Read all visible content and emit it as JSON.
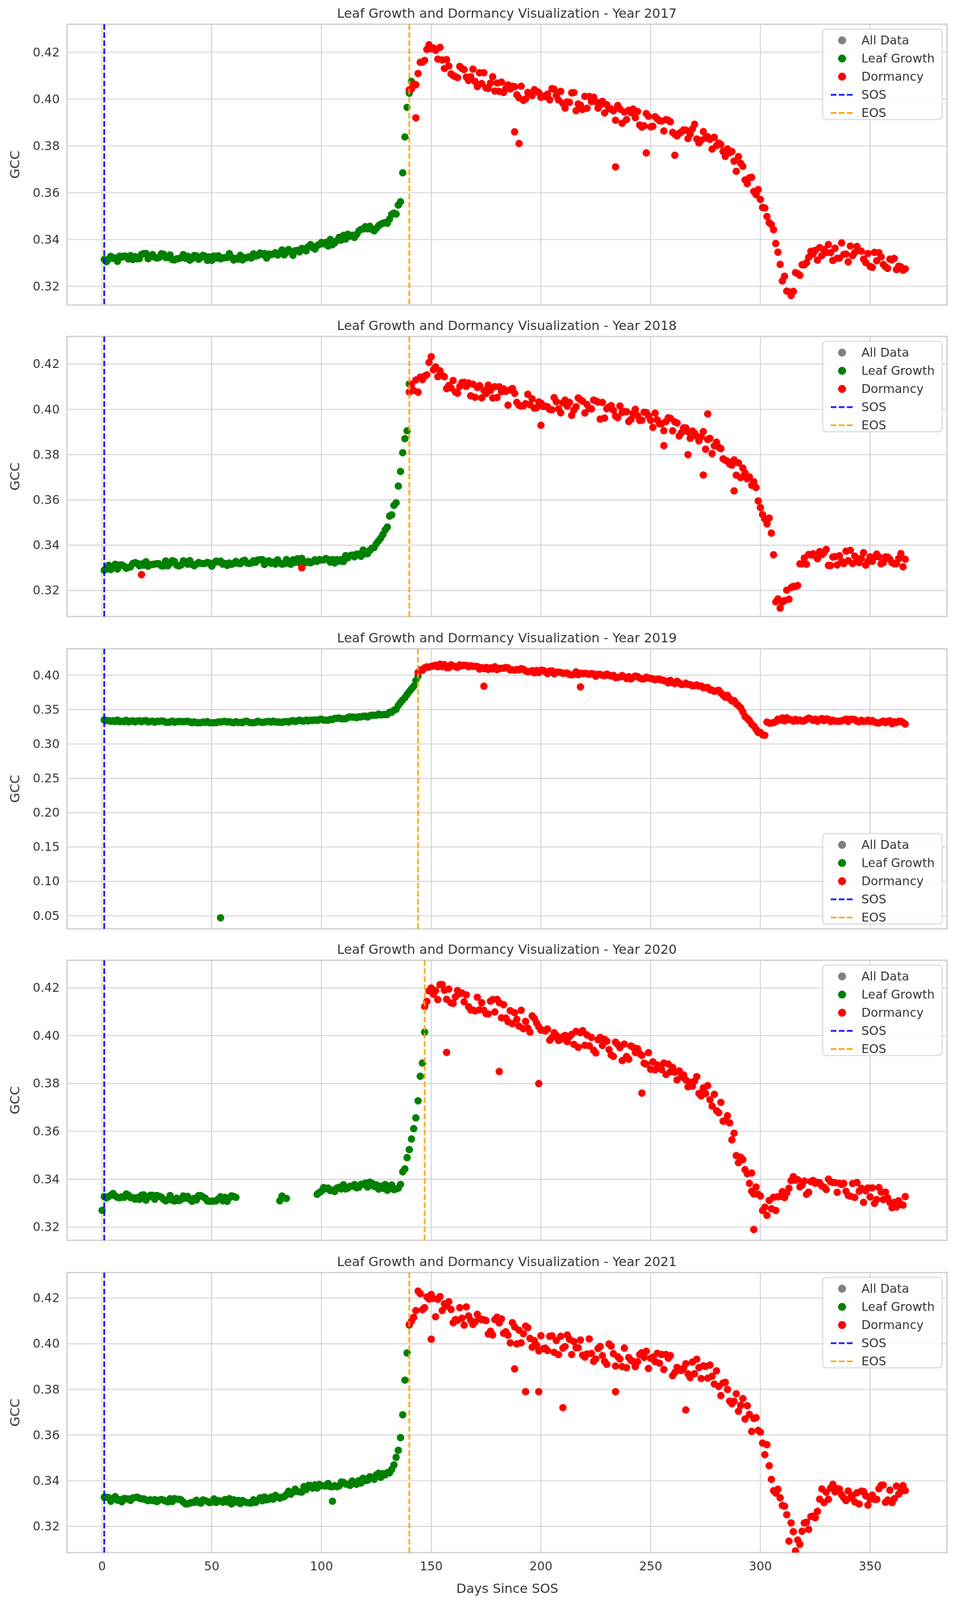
{
  "figure": {
    "shared_xlabel": "Days Since SOS"
  },
  "chart_data": [
    {
      "type": "scatter",
      "title": "Leaf Growth and Dormancy Visualization - Year 2017",
      "xlabel": "",
      "ylabel": "GCC",
      "xlim": [
        -16,
        385
      ],
      "ylim": [
        0.312,
        0.432
      ],
      "xticks": [
        0,
        50,
        100,
        150,
        200,
        250,
        300,
        350
      ],
      "xtick_labels": [
        "0",
        "50",
        "100",
        "150",
        "200",
        "250",
        "300",
        "350"
      ],
      "yticks": [
        0.32,
        0.34,
        0.36,
        0.38,
        0.4,
        0.42
      ],
      "ytick_labels": [
        "0.32",
        "0.34",
        "0.36",
        "0.38",
        "0.40",
        "0.42"
      ],
      "sos": 1,
      "eos": 140,
      "legend_position": "upper-right",
      "legend": [
        "All Data",
        "Leaf Growth",
        "Dormancy",
        "SOS",
        "EOS"
      ],
      "outliers": [
        [
          190,
          0.381
        ],
        [
          188,
          0.386
        ],
        [
          234,
          0.371
        ],
        [
          248,
          0.377
        ],
        [
          261,
          0.376
        ],
        [
          143,
          0.392
        ]
      ],
      "growth": {
        "start": 1,
        "end": 141,
        "noise": 0.0015,
        "anchors": [
          [
            1,
            0.331
          ],
          [
            20,
            0.333
          ],
          [
            40,
            0.332
          ],
          [
            70,
            0.333
          ],
          [
            90,
            0.335
          ],
          [
            105,
            0.339
          ],
          [
            120,
            0.344
          ],
          [
            130,
            0.347
          ],
          [
            134,
            0.352
          ],
          [
            136,
            0.357
          ],
          [
            137,
            0.368
          ],
          [
            138,
            0.384
          ],
          [
            139,
            0.397
          ],
          [
            140,
            0.402
          ],
          [
            141,
            0.408
          ]
        ]
      },
      "dormancy": {
        "start": 140,
        "end": 366,
        "noise": 0.004,
        "anchors": [
          [
            140,
            0.405
          ],
          [
            145,
            0.412
          ],
          [
            150,
            0.423
          ],
          [
            160,
            0.413
          ],
          [
            180,
            0.405
          ],
          [
            200,
            0.402
          ],
          [
            220,
            0.398
          ],
          [
            250,
            0.39
          ],
          [
            270,
            0.386
          ],
          [
            285,
            0.378
          ],
          [
            295,
            0.365
          ],
          [
            302,
            0.352
          ],
          [
            307,
            0.34
          ],
          [
            309,
            0.333
          ],
          [
            310,
            0.325
          ],
          [
            312,
            0.318
          ],
          [
            318,
            0.324
          ],
          [
            325,
            0.334
          ],
          [
            335,
            0.335
          ],
          [
            350,
            0.332
          ],
          [
            366,
            0.33
          ]
        ]
      }
    },
    {
      "type": "scatter",
      "title": "Leaf Growth and Dormancy Visualization - Year 2018",
      "xlabel": "",
      "ylabel": "GCC",
      "xlim": [
        -16,
        385
      ],
      "ylim": [
        0.3085,
        0.4322
      ],
      "xticks": [
        0,
        50,
        100,
        150,
        200,
        250,
        300,
        350
      ],
      "xtick_labels": [
        "0",
        "50",
        "100",
        "150",
        "200",
        "250",
        "300",
        "350"
      ],
      "yticks": [
        0.32,
        0.34,
        0.36,
        0.38,
        0.4,
        0.42
      ],
      "ytick_labels": [
        "0.32",
        "0.34",
        "0.36",
        "0.38",
        "0.40",
        "0.42"
      ],
      "sos": 1,
      "eos": 140,
      "legend_position": "upper-right",
      "legend": [
        "All Data",
        "Leaf Growth",
        "Dormancy",
        "SOS",
        "EOS"
      ],
      "outliers": [
        [
          18,
          0.327
        ],
        [
          91,
          0.33
        ],
        [
          200,
          0.393
        ],
        [
          256,
          0.384
        ],
        [
          267,
          0.38
        ],
        [
          274,
          0.371
        ],
        [
          288,
          0.364
        ],
        [
          276,
          0.398
        ]
      ],
      "growth": {
        "start": 1,
        "end": 140,
        "noise": 0.0013,
        "anchors": [
          [
            1,
            0.33
          ],
          [
            20,
            0.332
          ],
          [
            60,
            0.332
          ],
          [
            90,
            0.333
          ],
          [
            105,
            0.333
          ],
          [
            115,
            0.335
          ],
          [
            122,
            0.338
          ],
          [
            128,
            0.344
          ],
          [
            131,
            0.352
          ],
          [
            134,
            0.36
          ],
          [
            136,
            0.373
          ],
          [
            137,
            0.382
          ],
          [
            138,
            0.388
          ],
          [
            139,
            0.391
          ],
          [
            140,
            0.41
          ]
        ]
      },
      "dormancy": {
        "start": 140,
        "end": 366,
        "noise": 0.004,
        "anchors": [
          [
            140,
            0.407
          ],
          [
            145,
            0.412
          ],
          [
            150,
            0.42
          ],
          [
            160,
            0.41
          ],
          [
            180,
            0.407
          ],
          [
            200,
            0.402
          ],
          [
            220,
            0.401
          ],
          [
            250,
            0.395
          ],
          [
            270,
            0.39
          ],
          [
            285,
            0.378
          ],
          [
            295,
            0.368
          ],
          [
            302,
            0.355
          ],
          [
            305,
            0.347
          ],
          [
            306,
            0.334
          ],
          [
            307,
            0.316
          ],
          [
            310,
            0.313
          ],
          [
            315,
            0.322
          ],
          [
            320,
            0.332
          ],
          [
            330,
            0.335
          ],
          [
            350,
            0.335
          ],
          [
            366,
            0.333
          ]
        ]
      }
    },
    {
      "type": "scatter",
      "title": "Leaf Growth and Dormancy Visualization - Year 2019",
      "xlabel": "",
      "ylabel": "GCC",
      "xlim": [
        -16,
        385
      ],
      "ylim": [
        0.031,
        0.4385
      ],
      "xticks": [
        0,
        50,
        100,
        150,
        200,
        250,
        300,
        350
      ],
      "xtick_labels": [
        "0",
        "50",
        "100",
        "150",
        "200",
        "250",
        "300",
        "350"
      ],
      "yticks": [
        0.05,
        0.1,
        0.15,
        0.2,
        0.25,
        0.3,
        0.35,
        0.4
      ],
      "ytick_labels": [
        "0.05",
        "0.10",
        "0.15",
        "0.20",
        "0.25",
        "0.30",
        "0.35",
        "0.40"
      ],
      "sos": 1,
      "eos": 144,
      "legend_position": "lower-right",
      "legend": [
        "All Data",
        "Leaf Growth",
        "Dormancy",
        "SOS",
        "EOS"
      ],
      "growth_outliers": [
        [
          54,
          0.047
        ]
      ],
      "outliers": [
        [
          174,
          0.384
        ],
        [
          218,
          0.383
        ]
      ],
      "growth": {
        "start": 1,
        "end": 144,
        "noise": 0.0012,
        "anchors": [
          [
            1,
            0.334
          ],
          [
            40,
            0.332
          ],
          [
            80,
            0.332
          ],
          [
            105,
            0.336
          ],
          [
            120,
            0.34
          ],
          [
            130,
            0.344
          ],
          [
            134,
            0.35
          ],
          [
            136,
            0.36
          ],
          [
            139,
            0.373
          ],
          [
            142,
            0.385
          ],
          [
            144,
            0.399
          ]
        ]
      },
      "dormancy": {
        "start": 144,
        "end": 366,
        "noise": 0.0025,
        "anchors": [
          [
            144,
            0.405
          ],
          [
            150,
            0.415
          ],
          [
            160,
            0.413
          ],
          [
            180,
            0.41
          ],
          [
            200,
            0.405
          ],
          [
            220,
            0.402
          ],
          [
            250,
            0.395
          ],
          [
            270,
            0.385
          ],
          [
            280,
            0.378
          ],
          [
            287,
            0.365
          ],
          [
            292,
            0.347
          ],
          [
            295,
            0.332
          ],
          [
            300,
            0.315
          ],
          [
            302,
            0.312
          ],
          [
            303,
            0.331
          ],
          [
            310,
            0.336
          ],
          [
            330,
            0.335
          ],
          [
            366,
            0.331
          ]
        ]
      }
    },
    {
      "type": "scatter",
      "title": "Leaf Growth and Dormancy Visualization - Year 2020",
      "xlabel": "",
      "ylabel": "GCC",
      "xlim": [
        -16,
        385
      ],
      "ylim": [
        0.3145,
        0.4315
      ],
      "xticks": [
        0,
        50,
        100,
        150,
        200,
        250,
        300,
        350
      ],
      "xtick_labels": [
        "0",
        "50",
        "100",
        "150",
        "200",
        "250",
        "300",
        "350"
      ],
      "yticks": [
        0.32,
        0.34,
        0.36,
        0.38,
        0.4,
        0.42
      ],
      "ytick_labels": [
        "0.32",
        "0.34",
        "0.36",
        "0.38",
        "0.40",
        "0.42"
      ],
      "sos": 1,
      "eos": 147,
      "legend_position": "upper-right",
      "legend": [
        "All Data",
        "Leaf Growth",
        "Dormancy",
        "SOS",
        "EOS"
      ],
      "growth_outliers": [
        [
          0,
          0.327
        ],
        [
          81,
          0.331
        ],
        [
          82,
          0.333
        ],
        [
          84,
          0.332
        ]
      ],
      "outliers": [
        [
          181,
          0.385
        ],
        [
          199,
          0.38
        ],
        [
          157,
          0.393
        ],
        [
          246,
          0.376
        ],
        [
          296,
          0.335
        ],
        [
          297,
          0.319
        ]
      ],
      "growth": {
        "start": 1,
        "end": 147,
        "noise": 0.0013,
        "gaps": [
          [
            62,
            97
          ]
        ],
        "anchors": [
          [
            1,
            0.333
          ],
          [
            30,
            0.332
          ],
          [
            60,
            0.332
          ],
          [
            98,
            0.335
          ],
          [
            120,
            0.338
          ],
          [
            135,
            0.336
          ],
          [
            138,
            0.345
          ],
          [
            140,
            0.352
          ],
          [
            142,
            0.36
          ],
          [
            144,
            0.373
          ],
          [
            145,
            0.383
          ],
          [
            146,
            0.388
          ],
          [
            147,
            0.402
          ]
        ]
      },
      "dormancy": {
        "start": 147,
        "end": 366,
        "noise": 0.004,
        "anchors": [
          [
            147,
            0.41
          ],
          [
            150,
            0.42
          ],
          [
            160,
            0.416
          ],
          [
            180,
            0.412
          ],
          [
            200,
            0.403
          ],
          [
            220,
            0.398
          ],
          [
            240,
            0.392
          ],
          [
            260,
            0.386
          ],
          [
            270,
            0.38
          ],
          [
            280,
            0.372
          ],
          [
            287,
            0.36
          ],
          [
            290,
            0.35
          ],
          [
            293,
            0.345
          ],
          [
            301,
            0.328
          ],
          [
            310,
            0.332
          ],
          [
            315,
            0.338
          ],
          [
            330,
            0.337
          ],
          [
            366,
            0.331
          ]
        ]
      }
    },
    {
      "type": "scatter",
      "title": "Leaf Growth and Dormancy Visualization - Year 2021",
      "xlabel": "Days Since SOS",
      "ylabel": "GCC",
      "xlim": [
        -16,
        385
      ],
      "ylim": [
        0.3085,
        0.4312
      ],
      "xticks": [
        0,
        50,
        100,
        150,
        200,
        250,
        300,
        350
      ],
      "xtick_labels": [
        "0",
        "50",
        "100",
        "150",
        "200",
        "250",
        "300",
        "350"
      ],
      "yticks": [
        0.32,
        0.34,
        0.36,
        0.38,
        0.4,
        0.42
      ],
      "ytick_labels": [
        "0.32",
        "0.34",
        "0.36",
        "0.38",
        "0.40",
        "0.42"
      ],
      "sos": 1,
      "eos": 140,
      "legend_position": "upper-right",
      "legend": [
        "All Data",
        "Leaf Growth",
        "Dormancy",
        "SOS",
        "EOS"
      ],
      "growth_outliers": [
        [
          105,
          0.331
        ]
      ],
      "outliers": [
        [
          193,
          0.379
        ],
        [
          199,
          0.379
        ],
        [
          210,
          0.372
        ],
        [
          234,
          0.379
        ],
        [
          266,
          0.371
        ],
        [
          150,
          0.402
        ],
        [
          188,
          0.389
        ]
      ],
      "growth": {
        "start": 1,
        "end": 140,
        "noise": 0.0012,
        "anchors": [
          [
            1,
            0.332
          ],
          [
            40,
            0.331
          ],
          [
            70,
            0.331
          ],
          [
            80,
            0.333
          ],
          [
            90,
            0.336
          ],
          [
            100,
            0.338
          ],
          [
            115,
            0.339
          ],
          [
            125,
            0.342
          ],
          [
            132,
            0.344
          ],
          [
            134,
            0.35
          ],
          [
            136,
            0.359
          ],
          [
            137,
            0.368
          ],
          [
            138,
            0.383
          ],
          [
            139,
            0.397
          ],
          [
            140,
            0.409
          ]
        ]
      },
      "dormancy": {
        "start": 140,
        "end": 366,
        "noise": 0.005,
        "anchors": [
          [
            140,
            0.412
          ],
          [
            145,
            0.42
          ],
          [
            160,
            0.413
          ],
          [
            180,
            0.407
          ],
          [
            200,
            0.401
          ],
          [
            220,
            0.398
          ],
          [
            240,
            0.394
          ],
          [
            260,
            0.39
          ],
          [
            275,
            0.388
          ],
          [
            290,
            0.375
          ],
          [
            297,
            0.365
          ],
          [
            302,
            0.356
          ],
          [
            305,
            0.342
          ],
          [
            309,
            0.332
          ],
          [
            313,
            0.318
          ],
          [
            316,
            0.314
          ],
          [
            322,
            0.322
          ],
          [
            327,
            0.332
          ],
          [
            335,
            0.336
          ],
          [
            350,
            0.334
          ],
          [
            366,
            0.333
          ]
        ]
      }
    }
  ]
}
